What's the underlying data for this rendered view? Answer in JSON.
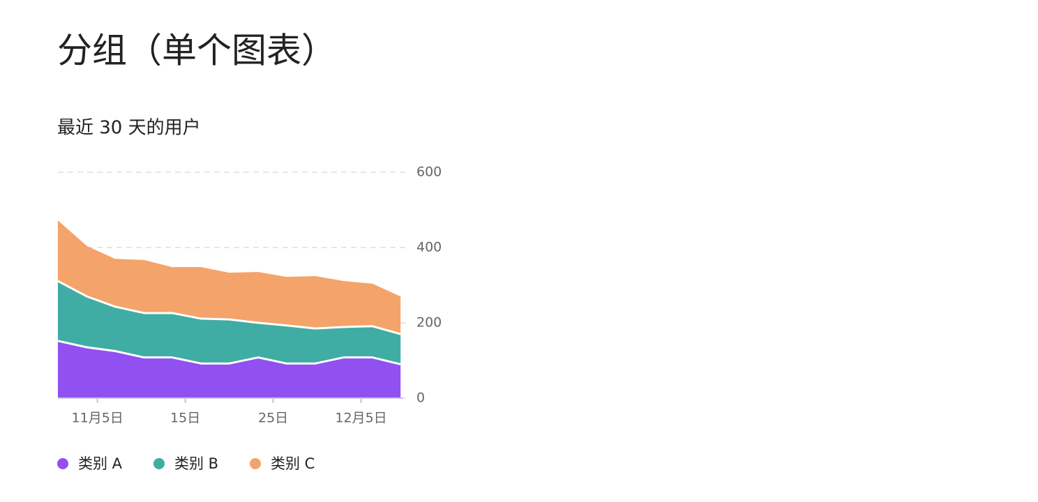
{
  "header": {
    "title": "分组（单个图表）"
  },
  "chart_data": {
    "type": "stacked-area",
    "title": "最近 30 天的用户",
    "x": [
      0.5,
      3.8,
      7,
      10.3,
      13.5,
      16.8,
      20,
      23.3,
      26.5,
      29.8,
      33,
      36.3,
      39.5
    ],
    "xlim": [
      0.5,
      39.8
    ],
    "xticks": [
      {
        "value": 5,
        "label": "11月5日"
      },
      {
        "value": 15,
        "label": "15日"
      },
      {
        "value": 25,
        "label": "25日"
      },
      {
        "value": 35,
        "label": "12月5日"
      }
    ],
    "ylim": [
      0,
      600
    ],
    "yticks": [
      0,
      200,
      400,
      600
    ],
    "grid": true,
    "legend": "bottom",
    "series": [
      {
        "name": "类别 A",
        "color": "#9150f0",
        "values": [
          152,
          135,
          125,
          108,
          108,
          92,
          92,
          108,
          92,
          92,
          108,
          108,
          90
        ]
      },
      {
        "name": "类别 B",
        "color": "#3fada4",
        "values": [
          159,
          135,
          118,
          118,
          118,
          119,
          117,
          92,
          101,
          93,
          81,
          83,
          80
        ]
      },
      {
        "name": "类别 C",
        "color": "#f4a36a",
        "values": [
          161,
          134,
          127,
          141,
          122,
          137,
          124,
          135,
          129,
          139,
          122,
          113,
          100
        ]
      }
    ]
  }
}
